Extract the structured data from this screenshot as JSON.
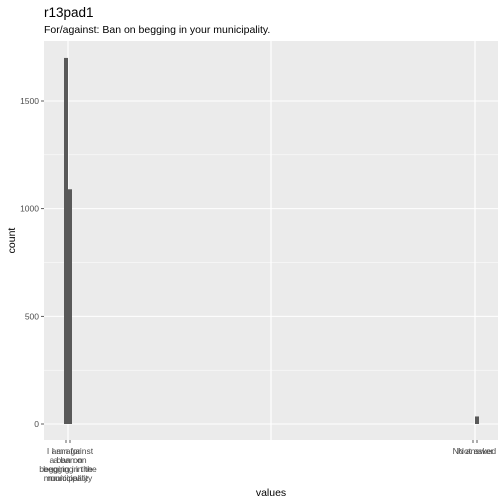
{
  "title": "r13pad1",
  "subtitle": "For/against: Ban on begging in your municipality.",
  "chart_data": {
    "type": "bar",
    "xlabel": "values",
    "ylabel": "count",
    "ylim": [
      0,
      1750
    ],
    "yticks": [
      0,
      500,
      1000,
      1500
    ],
    "grid": true,
    "categories": [
      "I am for a ban on begging in the municipality",
      "I am against a ban on begging in the municipality",
      "No answer",
      "Not asked"
    ],
    "category_labels": [
      [
        "I am for",
        "a ban on",
        "begging in the",
        "municipality"
      ],
      [
        "I am against",
        "a ban on",
        "begging in the",
        "municipality"
      ],
      [
        "No answer"
      ],
      [
        "Not asked"
      ]
    ],
    "values": [
      1700,
      1090,
      0,
      35
    ],
    "colors": {
      "bar": "#595959",
      "panel": "#ebebeb",
      "grid": "#ffffff"
    }
  }
}
